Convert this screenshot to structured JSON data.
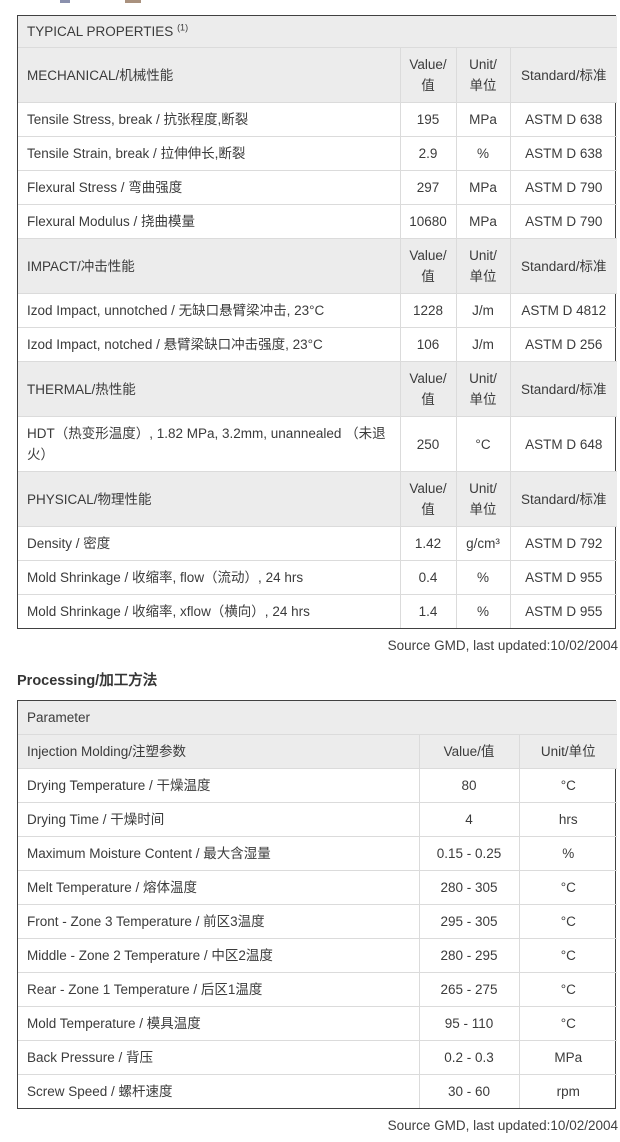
{
  "colors": {
    "text": "#3b3b3b",
    "outer_border": "#414141",
    "grid_line": "#dbdbdb",
    "header_bg": "#ececec"
  },
  "properties_table": {
    "title": "TYPICAL PROPERTIES",
    "title_superscript": "(1)",
    "col_headers": [
      "Value/值",
      "Unit/单位",
      "Standard/标准"
    ],
    "sections": [
      {
        "name": "MECHANICAL/机械性能",
        "rows": [
          {
            "property": "Tensile Stress, break / 抗张程度,断裂",
            "value": "195",
            "unit": "MPa",
            "standard": "ASTM D 638"
          },
          {
            "property": "Tensile Strain, break / 拉伸伸长,断裂",
            "value": "2.9",
            "unit": "%",
            "standard": "ASTM D 638"
          },
          {
            "property": "Flexural Stress / 弯曲强度",
            "value": "297",
            "unit": "MPa",
            "standard": "ASTM D 790"
          },
          {
            "property": "Flexural Modulus / 挠曲模量",
            "value": "10680",
            "unit": "MPa",
            "standard": "ASTM D 790"
          }
        ]
      },
      {
        "name": "IMPACT/冲击性能",
        "rows": [
          {
            "property": "Izod Impact, unnotched / 无缺口悬臂梁冲击, 23°C",
            "value": "1228",
            "unit": "J/m",
            "standard": "ASTM D 4812"
          },
          {
            "property": "Izod Impact, notched / 悬臂梁缺口冲击强度, 23°C",
            "value": "106",
            "unit": "J/m",
            "standard": "ASTM D 256"
          }
        ]
      },
      {
        "name": "THERMAL/热性能",
        "rows": [
          {
            "property": "HDT（热变形温度）, 1.82 MPa, 3.2mm, unannealed （未退火）",
            "value": "250",
            "unit": "°C",
            "standard": "ASTM D 648"
          }
        ]
      },
      {
        "name": "PHYSICAL/物理性能",
        "rows": [
          {
            "property": "Density / 密度",
            "value": "1.42",
            "unit": "g/cm³",
            "standard": "ASTM D 792"
          },
          {
            "property": "Mold Shrinkage / 收缩率, flow（流动）, 24 hrs",
            "value": "0.4",
            "unit": "%",
            "standard": "ASTM D 955"
          },
          {
            "property": "Mold Shrinkage / 收缩率, xflow（横向）, 24 hrs",
            "value": "1.4",
            "unit": "%",
            "standard": "ASTM D 955"
          }
        ]
      }
    ],
    "source": "Source GMD, last updated:10/02/2004"
  },
  "processing": {
    "heading": "Processing/加工方法",
    "table": {
      "group_header": "Parameter",
      "section_header": "Injection Molding/注塑参数",
      "col_headers": [
        "Value/值",
        "Unit/单位"
      ],
      "rows": [
        {
          "parameter": "Drying Temperature / 干燥温度",
          "value": "80",
          "unit": "°C"
        },
        {
          "parameter": "Drying Time / 干燥时间",
          "value": "4",
          "unit": "hrs"
        },
        {
          "parameter": "Maximum Moisture Content / 最大含湿量",
          "value": "0.15 - 0.25",
          "unit": "%"
        },
        {
          "parameter": "Melt Temperature / 熔体温度",
          "value": "280 - 305",
          "unit": "°C"
        },
        {
          "parameter": "Front - Zone 3 Temperature / 前区3温度",
          "value": "295 - 305",
          "unit": "°C"
        },
        {
          "parameter": "Middle - Zone 2 Temperature / 中区2温度",
          "value": "280 - 295",
          "unit": "°C"
        },
        {
          "parameter": "Rear - Zone 1 Temperature / 后区1温度",
          "value": "265 - 275",
          "unit": "°C"
        },
        {
          "parameter": "Mold Temperature / 模具温度",
          "value": "95 - 110",
          "unit": "°C"
        },
        {
          "parameter": "Back Pressure / 背压",
          "value": "0.2 - 0.3",
          "unit": "MPa"
        },
        {
          "parameter": "Screw Speed / 螺杆速度",
          "value": "30 - 60",
          "unit": "rpm"
        }
      ]
    },
    "source": "Source GMD, last updated:10/02/2004"
  }
}
